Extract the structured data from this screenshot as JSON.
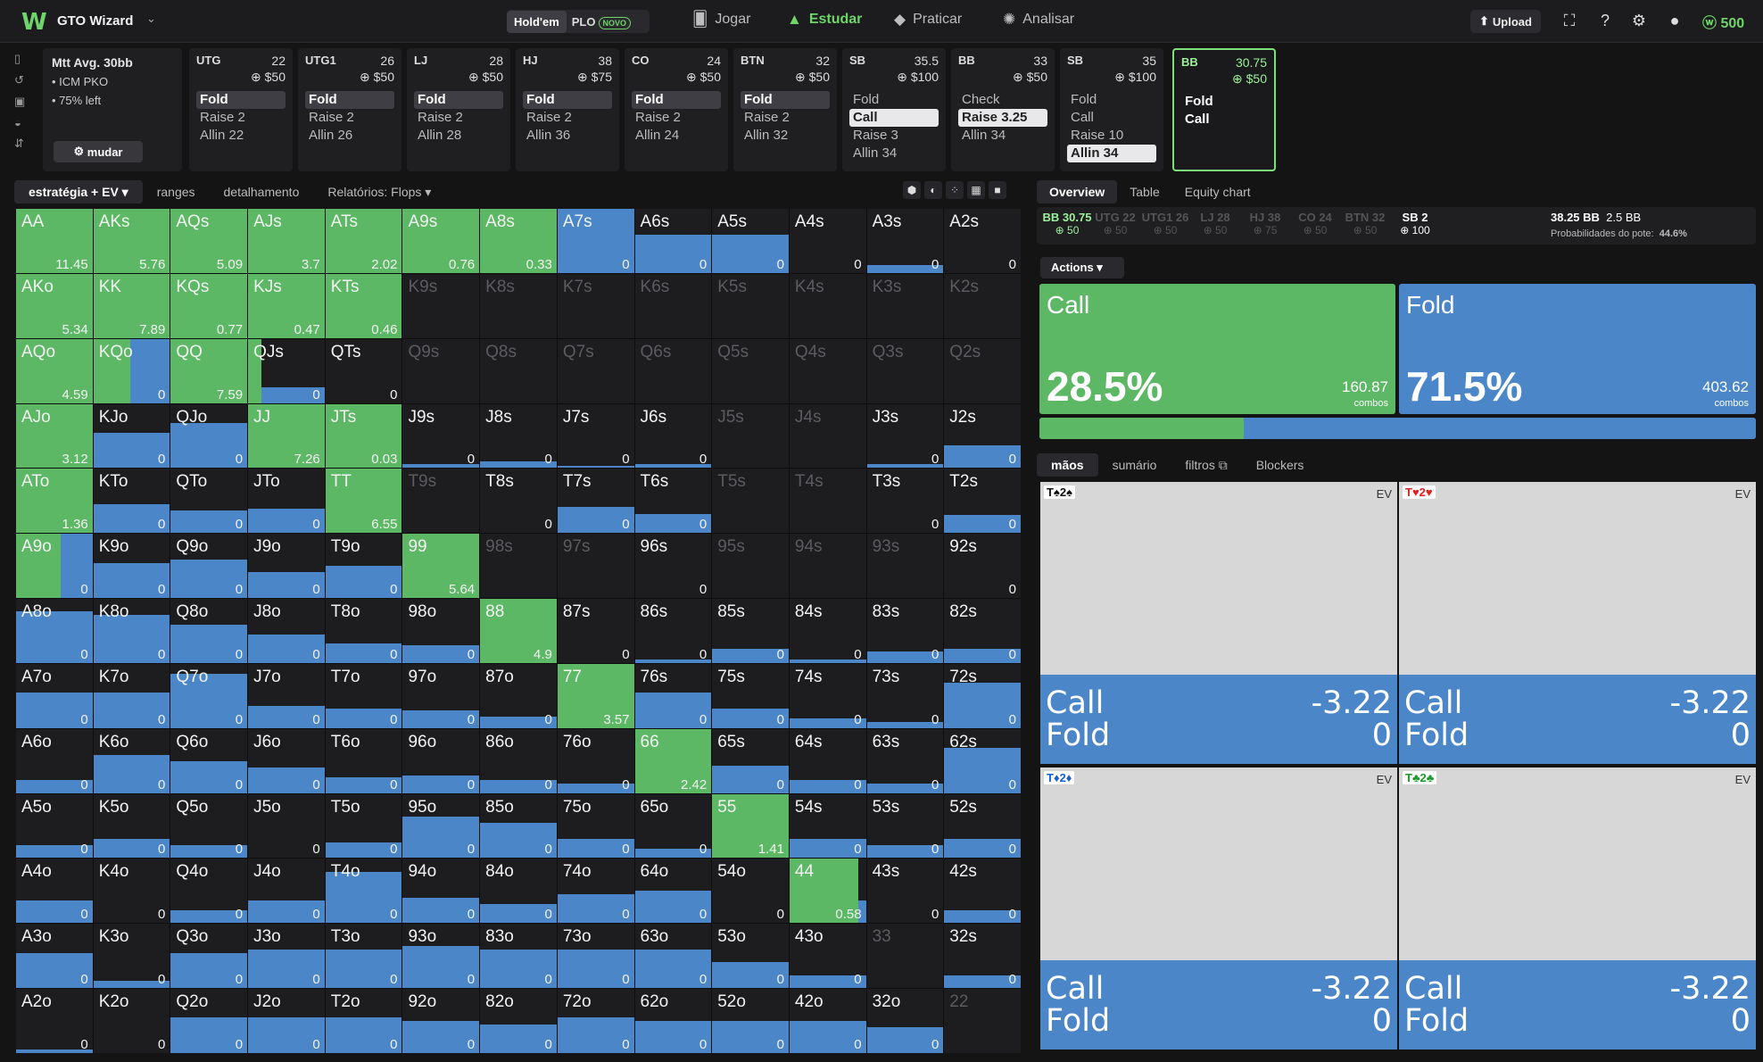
{
  "header": {
    "brand": "GTO Wizard",
    "seg_on": "Hold'em",
    "seg_off": "PLO",
    "novo": "NOVO",
    "nav": [
      "Jogar",
      "Estudar",
      "Praticar",
      "Analisar"
    ],
    "upload": "Upload",
    "coins": "500"
  },
  "info": {
    "title": "Mtt Avg. 30bb",
    "l1": "• ICM PKO",
    "l2": "• 75% left",
    "btn": "mudar"
  },
  "positions": [
    {
      "name": "UTG",
      "stack": "22",
      "bet": "$50",
      "acts": [
        "Fold",
        "Raise 2",
        "Allin 22"
      ],
      "hl": 0
    },
    {
      "name": "UTG1",
      "stack": "26",
      "bet": "$50",
      "acts": [
        "Fold",
        "Raise 2",
        "Allin 26"
      ],
      "hl": 0
    },
    {
      "name": "LJ",
      "stack": "28",
      "bet": "$50",
      "acts": [
        "Fold",
        "Raise 2",
        "Allin 28"
      ],
      "hl": 0
    },
    {
      "name": "HJ",
      "stack": "38",
      "bet": "$75",
      "acts": [
        "Fold",
        "Raise 2",
        "Allin 36"
      ],
      "hl": 0
    },
    {
      "name": "CO",
      "stack": "24",
      "bet": "$50",
      "acts": [
        "Fold",
        "Raise 2",
        "Allin 24"
      ],
      "hl": 0
    },
    {
      "name": "BTN",
      "stack": "32",
      "bet": "$50",
      "acts": [
        "Fold",
        "Raise 2",
        "Allin 32"
      ],
      "hl": 0
    },
    {
      "name": "SB",
      "stack": "35.5",
      "bet": "$100",
      "acts": [
        "Fold",
        "Call",
        "Raise 3",
        "Allin 34"
      ],
      "hl": 1
    },
    {
      "name": "BB",
      "stack": "33",
      "bet": "$50",
      "acts": [
        "Check",
        "Raise 3.25",
        "Allin 34"
      ],
      "hl": 1
    },
    {
      "name": "SB",
      "stack": "35",
      "bet": "$100",
      "acts": [
        "Fold",
        "Call",
        "Raise 10",
        "Allin 34"
      ],
      "hl": 3
    },
    {
      "name": "BB",
      "stack": "30.75",
      "bet": "$50",
      "acts": [
        "Fold",
        "Call"
      ],
      "hl": -1
    }
  ],
  "tabs": [
    "estratégia + EV",
    "ranges",
    "detalhamento",
    "Relatórios: Flops"
  ],
  "grid": [
    [
      [
        "AA",
        "11.45",
        1,
        0
      ],
      [
        "AKs",
        "5.76",
        1,
        0
      ],
      [
        "AQs",
        "5.09",
        1,
        0
      ],
      [
        "AJs",
        "3.7",
        1,
        0
      ],
      [
        "ATs",
        "2.02",
        1,
        0
      ],
      [
        "A9s",
        "0.76",
        1,
        0
      ],
      [
        "A8s",
        "0.33",
        1,
        0
      ],
      [
        "A7s",
        "0",
        0,
        1
      ],
      [
        "A6s",
        "0",
        0,
        0.6
      ],
      [
        "A5s",
        "0",
        0,
        0.6
      ],
      [
        "A4s",
        "0",
        0,
        0
      ],
      [
        "A3s",
        "0",
        0,
        0.12
      ],
      [
        "A2s",
        "0",
        0,
        0
      ]
    ],
    [
      [
        "AKo",
        "5.34",
        1,
        0
      ],
      [
        "KK",
        "7.89",
        1,
        0
      ],
      [
        "KQs",
        "0.77",
        1,
        0
      ],
      [
        "KJs",
        "0.47",
        1,
        0
      ],
      [
        "KTs",
        "0.46",
        1,
        0
      ],
      [
        "K9s",
        "",
        0,
        0,
        1
      ],
      [
        "K8s",
        "",
        0,
        0,
        1
      ],
      [
        "K7s",
        "",
        0,
        0,
        1
      ],
      [
        "K6s",
        "",
        0,
        0,
        1
      ],
      [
        "K5s",
        "",
        0,
        0,
        1
      ],
      [
        "K4s",
        "",
        0,
        0,
        1
      ],
      [
        "K3s",
        "",
        0,
        0,
        1
      ],
      [
        "K2s",
        "",
        0,
        0,
        1
      ]
    ],
    [
      [
        "AQo",
        "4.59",
        1,
        0
      ],
      [
        "KQo",
        "0",
        0.48,
        1
      ],
      [
        "QQ",
        "7.59",
        1,
        0
      ],
      [
        "QJs",
        "0",
        0.18,
        0.25
      ],
      [
        "QTs",
        "0",
        0,
        0
      ],
      [
        "Q9s",
        "",
        0,
        0,
        1
      ],
      [
        "Q8s",
        "",
        0,
        0,
        1
      ],
      [
        "Q7s",
        "",
        0,
        0,
        1
      ],
      [
        "Q6s",
        "",
        0,
        0,
        1
      ],
      [
        "Q5s",
        "",
        0,
        0,
        1
      ],
      [
        "Q4s",
        "",
        0,
        0,
        1
      ],
      [
        "Q3s",
        "",
        0,
        0,
        1
      ],
      [
        "Q2s",
        "",
        0,
        0,
        1
      ]
    ],
    [
      [
        "AJo",
        "3.12",
        1,
        0
      ],
      [
        "KJo",
        "0",
        0,
        0.55
      ],
      [
        "QJo",
        "0",
        0,
        0.7
      ],
      [
        "JJ",
        "7.26",
        1,
        0
      ],
      [
        "JTs",
        "0.03",
        1,
        0
      ],
      [
        "J9s",
        "0",
        0,
        0.06
      ],
      [
        "J8s",
        "0",
        0,
        0.1
      ],
      [
        "J7s",
        "0",
        0,
        0.03
      ],
      [
        "J6s",
        "0",
        0,
        0.06
      ],
      [
        "J5s",
        "",
        0,
        0,
        1
      ],
      [
        "J4s",
        "",
        0,
        0,
        1
      ],
      [
        "J3s",
        "0",
        0,
        0.06
      ],
      [
        "J2s",
        "0",
        0,
        0.35
      ]
    ],
    [
      [
        "ATo",
        "1.36",
        1,
        0
      ],
      [
        "KTo",
        "0",
        0,
        0.45
      ],
      [
        "QTo",
        "0",
        0,
        0.35
      ],
      [
        "JTo",
        "0",
        0,
        0.38
      ],
      [
        "TT",
        "6.55",
        1,
        0
      ],
      [
        "T9s",
        "",
        0,
        0,
        1
      ],
      [
        "T8s",
        "0",
        0,
        0
      ],
      [
        "T7s",
        "0",
        0,
        0.4
      ],
      [
        "T6s",
        "0",
        0,
        0.3
      ],
      [
        "T5s",
        "",
        0,
        0,
        1
      ],
      [
        "T4s",
        "",
        0,
        0,
        1
      ],
      [
        "T3s",
        "0",
        0,
        0
      ],
      [
        "T2s",
        "0",
        0,
        0.28
      ]
    ],
    [
      [
        "A9o",
        "0",
        0.58,
        1
      ],
      [
        "K9o",
        "0",
        0,
        0.55
      ],
      [
        "Q9o",
        "0",
        0,
        0.6
      ],
      [
        "J9o",
        "0",
        0,
        0.4
      ],
      [
        "T9o",
        "0",
        0,
        0.5
      ],
      [
        "99",
        "5.64",
        1,
        0
      ],
      [
        "98s",
        "",
        0,
        0,
        1
      ],
      [
        "97s",
        "",
        0,
        0,
        1
      ],
      [
        "96s",
        "0",
        0,
        0
      ],
      [
        "95s",
        "",
        0,
        0,
        1
      ],
      [
        "94s",
        "",
        0,
        0,
        1
      ],
      [
        "93s",
        "",
        0,
        0,
        1
      ],
      [
        "92s",
        "0",
        0,
        0
      ]
    ],
    [
      [
        "A8o",
        "0",
        0,
        0.8
      ],
      [
        "K8o",
        "0",
        0,
        0.75
      ],
      [
        "Q8o",
        "0",
        0,
        0.6
      ],
      [
        "J8o",
        "0",
        0,
        0.45
      ],
      [
        "T8o",
        "0",
        0,
        0.3
      ],
      [
        "98o",
        "0",
        0,
        0.28
      ],
      [
        "88",
        "4.9",
        1,
        0
      ],
      [
        "87s",
        "0",
        0,
        0
      ],
      [
        "86s",
        "0",
        0,
        0.06
      ],
      [
        "85s",
        "0",
        0,
        0.22
      ],
      [
        "84s",
        "0",
        0,
        0.06
      ],
      [
        "83s",
        "0",
        0,
        0.18
      ],
      [
        "82s",
        "0",
        0,
        0.22
      ]
    ],
    [
      [
        "A7o",
        "0",
        0,
        0.55
      ],
      [
        "K7o",
        "0",
        0,
        0.55
      ],
      [
        "Q7o",
        "0",
        0,
        0.85
      ],
      [
        "J7o",
        "0",
        0,
        0.35
      ],
      [
        "T7o",
        "0",
        0,
        0.3
      ],
      [
        "97o",
        "0",
        0,
        0.28
      ],
      [
        "87o",
        "0",
        0,
        0.18
      ],
      [
        "77",
        "3.57",
        1,
        0
      ],
      [
        "76s",
        "0",
        0,
        0.55
      ],
      [
        "75s",
        "0",
        0,
        0.3
      ],
      [
        "74s",
        "0",
        0,
        0.15
      ],
      [
        "73s",
        "0",
        0,
        0.1
      ],
      [
        "72s",
        "0",
        0,
        0.7
      ]
    ],
    [
      [
        "A6o",
        "0",
        0,
        0.2
      ],
      [
        "K6o",
        "0",
        0,
        0.6
      ],
      [
        "Q6o",
        "0",
        0,
        0.5
      ],
      [
        "J6o",
        "0",
        0,
        0.4
      ],
      [
        "T6o",
        "0",
        0,
        0.25
      ],
      [
        "96o",
        "0",
        0,
        0.28
      ],
      [
        "86o",
        "0",
        0,
        0.2
      ],
      [
        "76o",
        "0",
        0,
        0.15
      ],
      [
        "66",
        "2.42",
        1,
        0
      ],
      [
        "65s",
        "0",
        0,
        0.42
      ],
      [
        "64s",
        "0",
        0,
        0.2
      ],
      [
        "63s",
        "0",
        0,
        0.15
      ],
      [
        "62s",
        "0",
        0,
        0.7
      ]
    ],
    [
      [
        "A5o",
        "0",
        0,
        0.2
      ],
      [
        "K5o",
        "0",
        0,
        0.3
      ],
      [
        "Q5o",
        "0",
        0,
        0.2
      ],
      [
        "J5o",
        "0",
        0,
        0
      ],
      [
        "T5o",
        "0",
        0,
        0.25
      ],
      [
        "95o",
        "0",
        0,
        0.65
      ],
      [
        "85o",
        "0",
        0,
        0.55
      ],
      [
        "75o",
        "0",
        0,
        0.3
      ],
      [
        "65o",
        "0",
        0,
        0.15
      ],
      [
        "55",
        "1.41",
        1,
        0
      ],
      [
        "54s",
        "0",
        0,
        0.3
      ],
      [
        "53s",
        "0",
        0,
        0.2
      ],
      [
        "52s",
        "0",
        0,
        0.3
      ]
    ],
    [
      [
        "A4o",
        "0",
        0,
        0.35
      ],
      [
        "K4o",
        "0",
        0,
        0
      ],
      [
        "Q4o",
        "0",
        0,
        0.2
      ],
      [
        "J4o",
        "0",
        0,
        0.35
      ],
      [
        "T4o",
        "0",
        0,
        0.8
      ],
      [
        "94o",
        "0",
        0,
        0.4
      ],
      [
        "84o",
        "0",
        0,
        0.3
      ],
      [
        "74o",
        "0",
        0,
        0.45
      ],
      [
        "64o",
        "0",
        0,
        0.5
      ],
      [
        "54o",
        "0",
        0,
        0
      ],
      [
        "44",
        "0.58",
        0.9,
        0.35
      ],
      [
        "43s",
        "0",
        0,
        0
      ],
      [
        "42s",
        "0",
        0,
        0.2
      ]
    ],
    [
      [
        "A3o",
        "0",
        0,
        0.55
      ],
      [
        "K3o",
        "0",
        0,
        0.12
      ],
      [
        "Q3o",
        "0",
        0,
        0.55
      ],
      [
        "J3o",
        "0",
        0,
        0.6
      ],
      [
        "T3o",
        "0",
        0,
        0.6
      ],
      [
        "93o",
        "0",
        0,
        0.65
      ],
      [
        "83o",
        "0",
        0,
        0.6
      ],
      [
        "73o",
        "0",
        0,
        0.6
      ],
      [
        "63o",
        "0",
        0,
        0.6
      ],
      [
        "53o",
        "0",
        0,
        0.4
      ],
      [
        "43o",
        "0",
        0,
        0.2
      ],
      [
        "33",
        "",
        0,
        0,
        1
      ],
      [
        "32s",
        "0",
        0,
        0.2
      ]
    ],
    [
      [
        "A2o",
        "0",
        0,
        0.05
      ],
      [
        "K2o",
        "0",
        0,
        0
      ],
      [
        "Q2o",
        "0",
        0,
        0.55
      ],
      [
        "J2o",
        "0",
        0,
        0.55
      ],
      [
        "T2o",
        "0",
        0,
        0.55
      ],
      [
        "92o",
        "0",
        0,
        0.5
      ],
      [
        "82o",
        "0",
        0,
        0.45
      ],
      [
        "72o",
        "0",
        0,
        0.55
      ],
      [
        "62o",
        "0",
        0,
        0.5
      ],
      [
        "52o",
        "0",
        0,
        0.5
      ],
      [
        "42o",
        "0",
        0,
        0.5
      ],
      [
        "32o",
        "0",
        0,
        0.4
      ],
      [
        "22",
        "",
        0,
        0,
        1
      ]
    ]
  ],
  "right_tabs": [
    "Overview",
    "Table",
    "Equity chart"
  ],
  "players": [
    {
      "n": "BB 30.75",
      "b": "50",
      "s": "on"
    },
    {
      "n": "UTG 22",
      "b": "50",
      "s": ""
    },
    {
      "n": "UTG1 26",
      "b": "50",
      "s": ""
    },
    {
      "n": "LJ 28",
      "b": "50",
      "s": ""
    },
    {
      "n": "HJ 38",
      "b": "75",
      "s": ""
    },
    {
      "n": "CO 24",
      "b": "50",
      "s": ""
    },
    {
      "n": "BTN 32",
      "b": "50",
      "s": ""
    },
    {
      "n": "SB 2",
      "b": "100",
      "s": "w"
    }
  ],
  "pot": {
    "v": "38.25 BB",
    "bb": "2.5 BB",
    "lbl": "Probabilidades do pote:",
    "pct": "44.6%"
  },
  "actions_btn": "Actions",
  "call": {
    "name": "Call",
    "pct": "28.5%",
    "num": "160.87",
    "cmb": "combos",
    "frac": 0.285
  },
  "fold": {
    "name": "Fold",
    "pct": "71.5%",
    "num": "403.62",
    "cmb": "combos"
  },
  "hand_tabs": [
    "mãos",
    "sumário",
    "filtros",
    "Blockers"
  ],
  "combos": [
    {
      "lab": "T♠2♠",
      "color": "#111",
      "ev": "EV",
      "r1": "Call",
      "v1": "-3.22",
      "r2": "Fold",
      "v2": "0"
    },
    {
      "lab": "T♥2♥",
      "color": "#d22",
      "ev": "EV",
      "r1": "Call",
      "v1": "-3.22",
      "r2": "Fold",
      "v2": "0"
    },
    {
      "lab": "T♦2♦",
      "color": "#1a5fd0",
      "ev": "EV",
      "r1": "Call",
      "v1": "-3.22",
      "r2": "Fold",
      "v2": "0"
    },
    {
      "lab": "T♣2♣",
      "color": "#1a9a2a",
      "ev": "EV",
      "r1": "Call",
      "v1": "-3.22",
      "r2": "Fold",
      "v2": "0"
    }
  ]
}
